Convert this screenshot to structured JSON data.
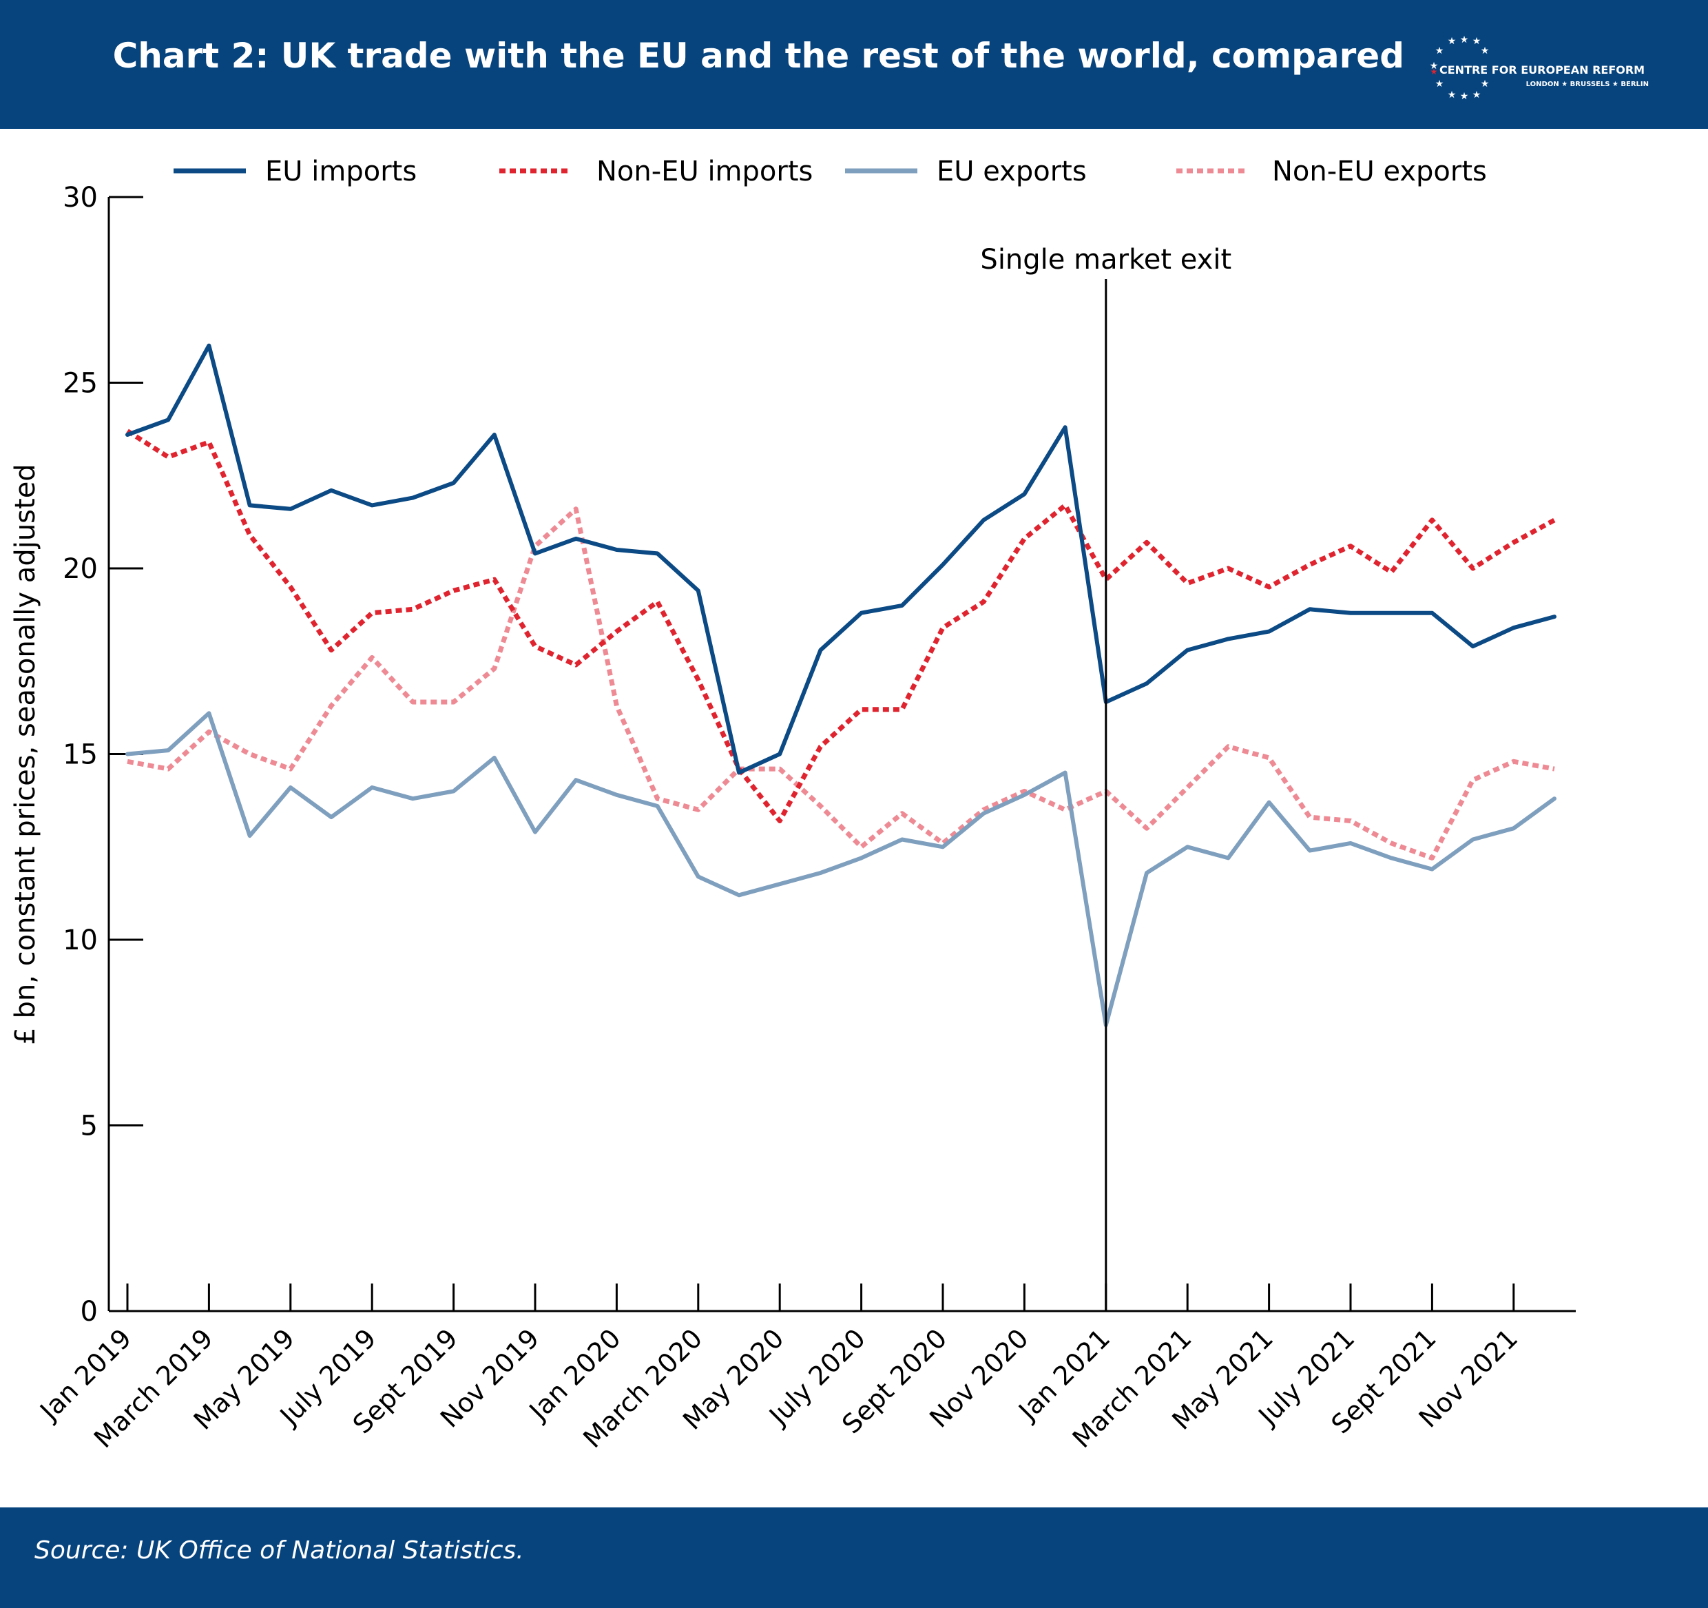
{
  "header": {
    "title": "Chart 2: UK trade with the EU and the rest of the world, compared",
    "logo_name": "CENTRE FOR EUROPEAN REFORM",
    "logo_cities": "LONDON ★ BRUSSELS ★ BERLIN"
  },
  "footer": {
    "source": "Source: UK Office of National Statistics."
  },
  "colors": {
    "banner": "#07447e",
    "eu_imports": "#0b4a84",
    "non_eu_imports": "#e0242f",
    "eu_exports": "#7f9fbe",
    "non_eu_exports": "#ee8a94"
  },
  "chart_data": {
    "type": "line",
    "title": "Chart 2: UK trade with the EU and the rest of the world, compared",
    "ylabel": "£ bn, constant prices, seasonally adjusted",
    "xlabel": "",
    "ylim": [
      0,
      30
    ],
    "yticks": [
      0,
      5,
      10,
      15,
      20,
      25,
      30
    ],
    "legend_position": "top",
    "x": [
      "Jan 2019",
      "Feb 2019",
      "Mar 2019",
      "Apr 2019",
      "May 2019",
      "Jun 2019",
      "Jul 2019",
      "Aug 2019",
      "Sep 2019",
      "Oct 2019",
      "Nov 2019",
      "Dec 2019",
      "Jan 2020",
      "Feb 2020",
      "Mar 2020",
      "Apr 2020",
      "May 2020",
      "Jun 2020",
      "Jul 2020",
      "Aug 2020",
      "Sep 2020",
      "Oct 2020",
      "Nov 2020",
      "Dec 2020",
      "Jan 2021",
      "Feb 2021",
      "Mar 2021",
      "Apr 2021",
      "May 2021",
      "Jun 2021",
      "Jul 2021",
      "Aug 2021",
      "Sep 2021",
      "Oct 2021",
      "Nov 2021",
      "Dec 2021"
    ],
    "tick_labels": [
      "Jan 2019",
      "March  2019",
      "May 2019",
      "July 2019",
      "Sept 2019",
      "Nov 2019",
      "Jan 2020",
      "March 2020",
      "May  2020",
      "July 2020",
      "Sept 2020",
      "Nov 2020",
      "Jan 2021",
      "March 2021",
      "May 2021",
      "July 2021",
      "Sept 2021",
      "Nov 2021"
    ],
    "series": [
      {
        "name": "EU imports",
        "style": "solid",
        "color": "#0b4a84",
        "values": [
          23.6,
          24.0,
          26.0,
          21.7,
          21.6,
          22.1,
          21.7,
          21.9,
          22.3,
          23.6,
          20.4,
          20.8,
          20.5,
          20.4,
          19.4,
          14.5,
          15.0,
          17.8,
          18.8,
          19.0,
          20.1,
          21.3,
          22.0,
          23.8,
          16.4,
          16.9,
          17.8,
          18.1,
          18.3,
          18.9,
          18.8,
          18.8,
          18.8,
          17.9,
          18.4,
          18.7
        ]
      },
      {
        "name": "Non-EU imports",
        "style": "dotted",
        "color": "#e0242f",
        "values": [
          23.7,
          23.0,
          23.4,
          20.9,
          19.5,
          17.8,
          18.8,
          18.9,
          19.4,
          19.7,
          17.9,
          17.4,
          18.3,
          19.1,
          17.0,
          14.6,
          13.2,
          15.2,
          16.2,
          16.2,
          18.4,
          19.1,
          20.8,
          21.7,
          19.7,
          20.7,
          19.6,
          20.0,
          19.5,
          20.1,
          20.6,
          19.9,
          21.3,
          20.0,
          20.7,
          21.3
        ]
      },
      {
        "name": "EU exports",
        "style": "solid",
        "color": "#7f9fbe",
        "values": [
          15.0,
          15.1,
          16.1,
          12.8,
          14.1,
          13.3,
          14.1,
          13.8,
          14.0,
          14.9,
          12.9,
          14.3,
          13.9,
          13.6,
          11.7,
          11.2,
          11.5,
          11.8,
          12.2,
          12.7,
          12.5,
          13.4,
          13.9,
          14.5,
          7.7,
          11.8,
          12.5,
          12.2,
          13.7,
          12.4,
          12.6,
          12.2,
          11.9,
          12.7,
          13.0,
          13.8
        ]
      },
      {
        "name": "Non-EU exports",
        "style": "dotted",
        "color": "#ee8a94",
        "values": [
          14.8,
          14.6,
          15.6,
          15.0,
          14.6,
          16.3,
          17.6,
          16.4,
          16.4,
          17.3,
          20.6,
          21.6,
          16.3,
          13.8,
          13.5,
          14.6,
          14.6,
          13.6,
          12.5,
          13.4,
          12.6,
          13.5,
          14.0,
          13.5,
          14.0,
          13.0,
          14.1,
          15.2,
          14.9,
          13.3,
          13.2,
          12.6,
          12.2,
          14.3,
          14.8,
          14.6
        ]
      }
    ],
    "annotations": [
      {
        "text": "Single market exit",
        "x": "Jan 2021"
      }
    ]
  }
}
